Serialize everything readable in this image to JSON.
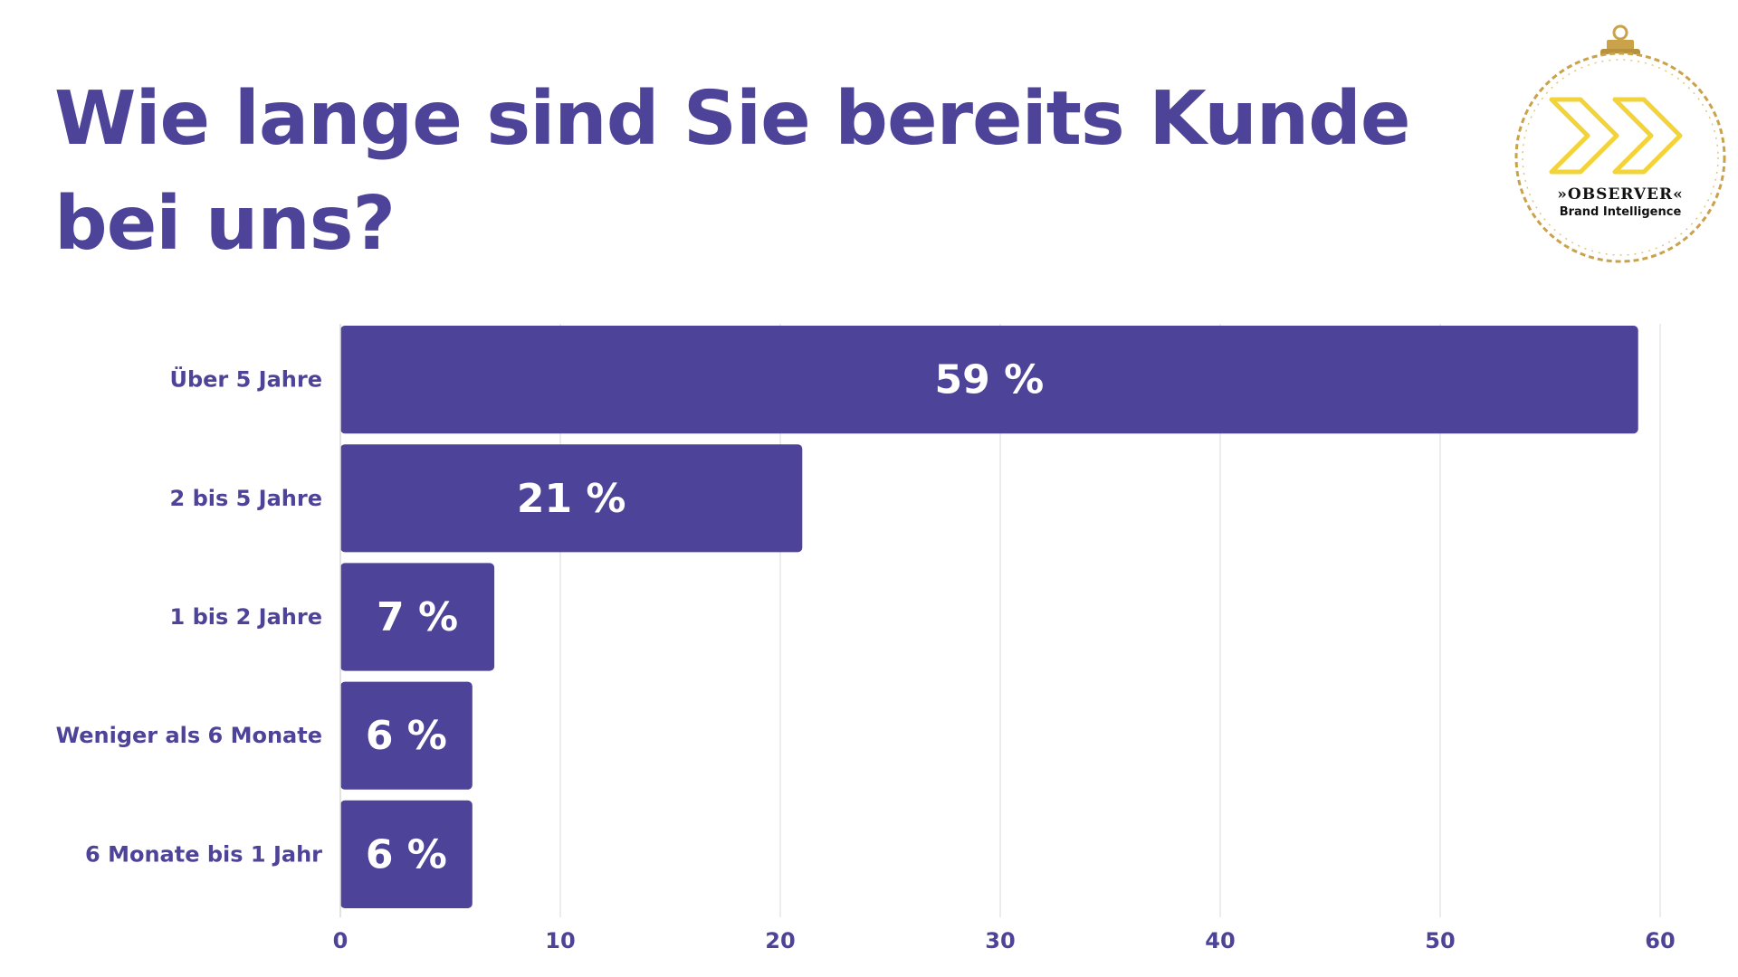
{
  "title": "Wie lange sind Sie bereits Kunde bei uns?",
  "logo": {
    "name": "»OBSERVER«",
    "tagline": "Brand Intelligence",
    "accent": "#f2d43a",
    "ring": "#c9a24a"
  },
  "colors": {
    "bar": "#4d4398",
    "text": "#4d4398",
    "grid": "#e6e6e6"
  },
  "chart_data": {
    "type": "bar",
    "orientation": "horizontal",
    "categories": [
      "Über 5 Jahre",
      "2 bis 5 Jahre",
      "1 bis 2 Jahre",
      "Weniger als 6 Monate",
      "6 Monate bis 1 Jahr"
    ],
    "values": [
      59,
      21,
      7,
      6,
      6
    ],
    "value_labels": [
      "59 %",
      "21 %",
      "7 %",
      "6 %",
      "6 %"
    ],
    "xlim": [
      0,
      60
    ],
    "xticks": [
      "0",
      "10",
      "20",
      "30",
      "40",
      "50",
      "60"
    ],
    "grid": true,
    "legend": "none"
  }
}
